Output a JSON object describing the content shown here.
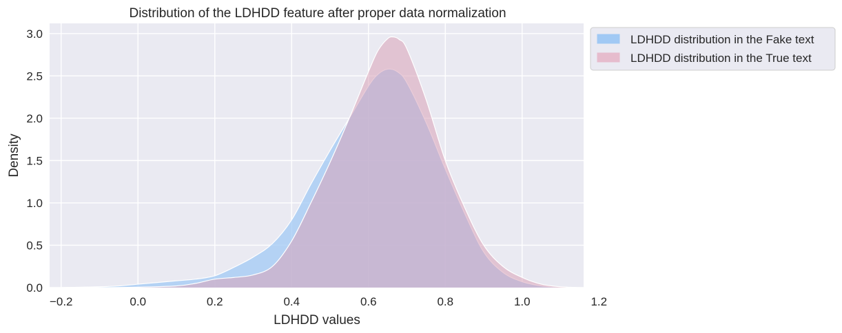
{
  "chart_data": {
    "type": "area",
    "title": "Distribution of the LDHDD feature after proper data normalization",
    "xlabel": "LDHDD values",
    "ylabel": "Density",
    "xlim": [
      -0.23,
      1.16
    ],
    "ylim": [
      0,
      3.12
    ],
    "xticks": [
      -0.2,
      0.0,
      0.2,
      0.4,
      0.6,
      0.8,
      1.0,
      1.2
    ],
    "xtick_labels": [
      "−0.2",
      "0.0",
      "0.2",
      "0.4",
      "0.6",
      "0.8",
      "1.0",
      "1.2"
    ],
    "yticks": [
      0.0,
      0.5,
      1.0,
      1.5,
      2.0,
      2.5,
      3.0
    ],
    "ytick_labels": [
      "0.0",
      "0.5",
      "1.0",
      "1.5",
      "2.0",
      "2.5",
      "3.0"
    ],
    "grid": true,
    "legend_position": "outside-top-right",
    "series": [
      {
        "name": "LDHDD distribution in the Fake text",
        "color": "#a1c9f4",
        "x": [
          -0.2,
          -0.1,
          -0.05,
          0.0,
          0.05,
          0.1,
          0.15,
          0.2,
          0.25,
          0.3,
          0.35,
          0.4,
          0.45,
          0.5,
          0.55,
          0.6,
          0.625,
          0.65,
          0.675,
          0.7,
          0.75,
          0.8,
          0.85,
          0.9,
          0.95,
          1.0,
          1.05,
          1.1,
          1.15
        ],
        "y": [
          0.0,
          0.01,
          0.02,
          0.04,
          0.06,
          0.08,
          0.1,
          0.14,
          0.24,
          0.36,
          0.52,
          0.8,
          1.22,
          1.62,
          2.0,
          2.38,
          2.52,
          2.58,
          2.55,
          2.42,
          1.95,
          1.4,
          0.88,
          0.42,
          0.18,
          0.07,
          0.02,
          0.005,
          0.0
        ]
      },
      {
        "name": "LDHDD distribution in the True text",
        "color": "#d9a3b8",
        "x": [
          -0.2,
          -0.1,
          0.0,
          0.1,
          0.15,
          0.2,
          0.25,
          0.3,
          0.35,
          0.4,
          0.45,
          0.5,
          0.55,
          0.6,
          0.625,
          0.65,
          0.665,
          0.68,
          0.7,
          0.75,
          0.8,
          0.85,
          0.9,
          0.95,
          1.0,
          1.05,
          1.1,
          1.15
        ],
        "y": [
          0.0,
          0.0,
          0.005,
          0.02,
          0.05,
          0.1,
          0.12,
          0.15,
          0.25,
          0.55,
          1.0,
          1.48,
          2.0,
          2.55,
          2.8,
          2.94,
          2.96,
          2.93,
          2.82,
          2.22,
          1.5,
          0.95,
          0.5,
          0.25,
          0.12,
          0.04,
          0.01,
          0.0
        ]
      }
    ]
  }
}
